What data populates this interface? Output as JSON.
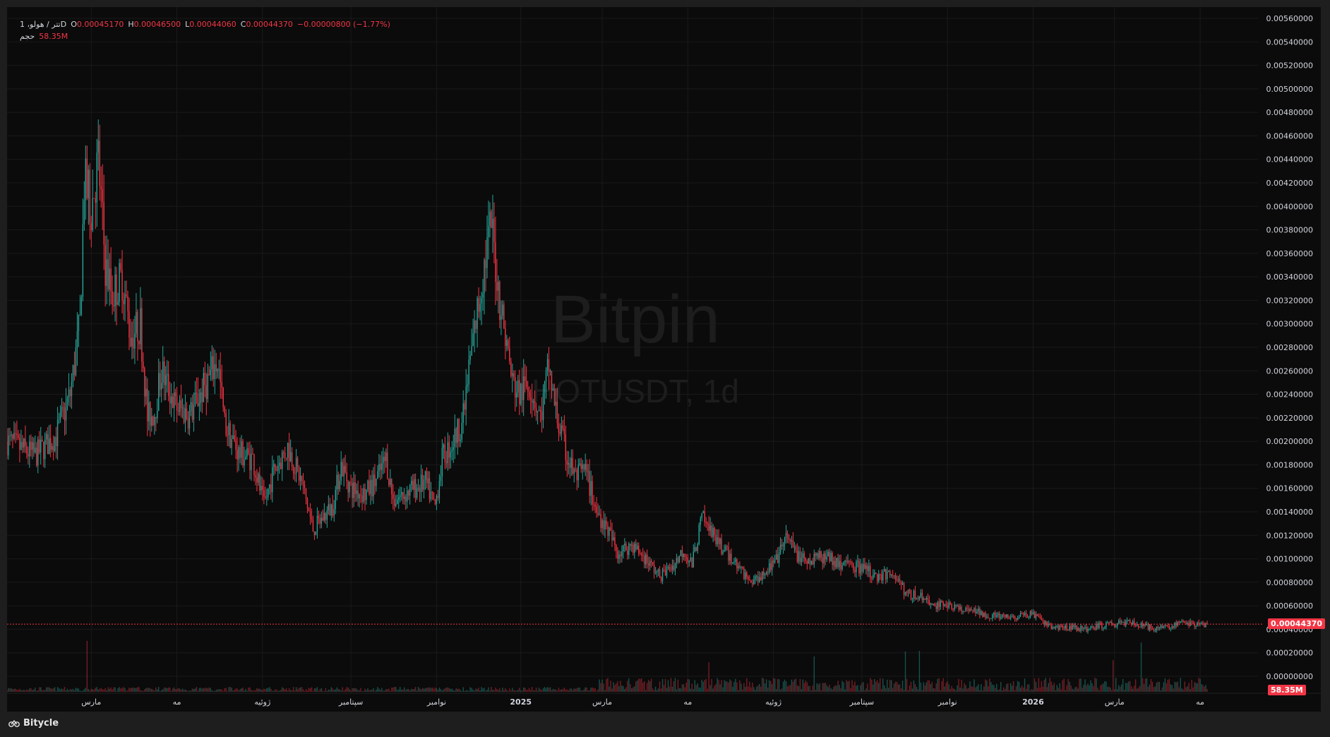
{
  "legend": {
    "symbol": "1 ،تتر / هولوD",
    "open_label": "O",
    "open": "0.00045170",
    "high_label": "H",
    "high": "0.00046500",
    "low_label": "L",
    "low": "0.00044060",
    "close_label": "C",
    "close": "0.00044370",
    "change": "−0.00000800 (−1.77%)",
    "volume_label": "حجم",
    "volume": "58.35M"
  },
  "watermark": {
    "line1": "Bitpin",
    "line2": "HOTUSDT, 1d"
  },
  "price_tag": "0.00044370",
  "volume_tag": "58.35M",
  "footer": {
    "brand": "Bitycle"
  },
  "colors": {
    "up": "#26a69a",
    "down": "#f23645",
    "background": "#0b0b0b",
    "grid": "#1a1a1a"
  },
  "chart_data": {
    "type": "candlestick",
    "y_axis": {
      "min": 0,
      "max": 0.0056,
      "step": 0.0002,
      "ticks": [
        "0.00000000",
        "0.00020000",
        "0.00040000",
        "0.00060000",
        "0.00080000",
        "0.00100000",
        "0.00120000",
        "0.00140000",
        "0.00160000",
        "0.00180000",
        "0.00200000",
        "0.00220000",
        "0.00240000",
        "0.00260000",
        "0.00280000",
        "0.00300000",
        "0.00320000",
        "0.00340000",
        "0.00360000",
        "0.00380000",
        "0.00400000",
        "0.00420000",
        "0.00440000",
        "0.00460000",
        "0.00480000",
        "0.00500000",
        "0.00520000",
        "0.00540000",
        "0.00560000"
      ]
    },
    "x_axis": {
      "labels": [
        "مارس",
        "مه",
        "ژوئیه",
        "سپتامبر",
        "نوامبر",
        "2025",
        "مارس",
        "مه",
        "ژوئیه",
        "سپتامبر",
        "نوامبر",
        "2026",
        "مارس",
        "مه"
      ],
      "bold": [
        false,
        false,
        false,
        false,
        false,
        true,
        false,
        false,
        false,
        false,
        false,
        true,
        false,
        false
      ],
      "label_days": [
        60,
        121,
        182,
        245,
        306,
        366,
        424,
        485,
        546,
        609,
        670,
        731,
        789,
        850
      ],
      "total_days": 855
    },
    "last_price": 0.0004437,
    "close_path": [
      [
        0,
        0.002
      ],
      [
        20,
        0.00188
      ],
      [
        35,
        0.00205
      ],
      [
        45,
        0.0024
      ],
      [
        52,
        0.003
      ],
      [
        55,
        0.0042
      ],
      [
        60,
        0.004
      ],
      [
        65,
        0.0044
      ],
      [
        70,
        0.0035
      ],
      [
        75,
        0.00325
      ],
      [
        82,
        0.0034
      ],
      [
        88,
        0.0029
      ],
      [
        95,
        0.003
      ],
      [
        100,
        0.0022
      ],
      [
        105,
        0.00225
      ],
      [
        110,
        0.0026
      ],
      [
        120,
        0.0023
      ],
      [
        130,
        0.00222
      ],
      [
        140,
        0.00245
      ],
      [
        150,
        0.00268
      ],
      [
        155,
        0.00215
      ],
      [
        165,
        0.0019
      ],
      [
        175,
        0.00185
      ],
      [
        183,
        0.00145
      ],
      [
        190,
        0.00175
      ],
      [
        200,
        0.00195
      ],
      [
        210,
        0.00165
      ],
      [
        218,
        0.00125
      ],
      [
        225,
        0.00135
      ],
      [
        232,
        0.00145
      ],
      [
        238,
        0.0018
      ],
      [
        245,
        0.0016
      ],
      [
        255,
        0.00155
      ],
      [
        262,
        0.00165
      ],
      [
        270,
        0.00185
      ],
      [
        275,
        0.0015
      ],
      [
        283,
        0.00155
      ],
      [
        290,
        0.0016
      ],
      [
        298,
        0.00165
      ],
      [
        305,
        0.00145
      ],
      [
        310,
        0.00185
      ],
      [
        318,
        0.002
      ],
      [
        325,
        0.0022
      ],
      [
        330,
        0.0027
      ],
      [
        335,
        0.0031
      ],
      [
        340,
        0.0035
      ],
      [
        345,
        0.00385
      ],
      [
        350,
        0.0033
      ],
      [
        355,
        0.0029
      ],
      [
        360,
        0.0025
      ],
      [
        365,
        0.0024
      ],
      [
        372,
        0.0025
      ],
      [
        380,
        0.0022
      ],
      [
        386,
        0.00265
      ],
      [
        390,
        0.0023
      ],
      [
        398,
        0.0019
      ],
      [
        405,
        0.0017
      ],
      [
        412,
        0.00175
      ],
      [
        420,
        0.0014
      ],
      [
        428,
        0.00125
      ],
      [
        435,
        0.00105
      ],
      [
        445,
        0.00112
      ],
      [
        455,
        0.001
      ],
      [
        465,
        0.00085
      ],
      [
        475,
        0.00095
      ],
      [
        482,
        0.00108
      ],
      [
        488,
        0.00095
      ],
      [
        495,
        0.00135
      ],
      [
        500,
        0.00125
      ],
      [
        510,
        0.00108
      ],
      [
        520,
        0.00095
      ],
      [
        530,
        0.0008
      ],
      [
        540,
        0.0009
      ],
      [
        548,
        0.00098
      ],
      [
        555,
        0.00118
      ],
      [
        562,
        0.00105
      ],
      [
        570,
        0.00095
      ],
      [
        580,
        0.00102
      ],
      [
        590,
        0.00098
      ],
      [
        600,
        0.00095
      ],
      [
        610,
        0.00092
      ],
      [
        620,
        0.00085
      ],
      [
        630,
        0.00088
      ],
      [
        636,
        0.0008
      ],
      [
        640,
        0.0007
      ],
      [
        650,
        0.00068
      ],
      [
        660,
        0.0006
      ],
      [
        670,
        0.00062
      ],
      [
        680,
        0.00056
      ],
      [
        690,
        0.00055
      ],
      [
        700,
        0.00052
      ],
      [
        710,
        0.0005
      ],
      [
        720,
        0.0005
      ],
      [
        730,
        0.00054
      ],
      [
        738,
        0.00045
      ],
      [
        748,
        0.00041
      ],
      [
        758,
        0.00042
      ],
      [
        768,
        0.0004
      ],
      [
        778,
        0.00043
      ],
      [
        788,
        0.00044
      ],
      [
        798,
        0.00046
      ],
      [
        808,
        0.00043
      ],
      [
        818,
        0.00041
      ],
      [
        828,
        0.00043
      ],
      [
        838,
        0.00045
      ],
      [
        850,
        0.00044
      ],
      [
        855,
        0.0004437
      ]
    ]
  }
}
